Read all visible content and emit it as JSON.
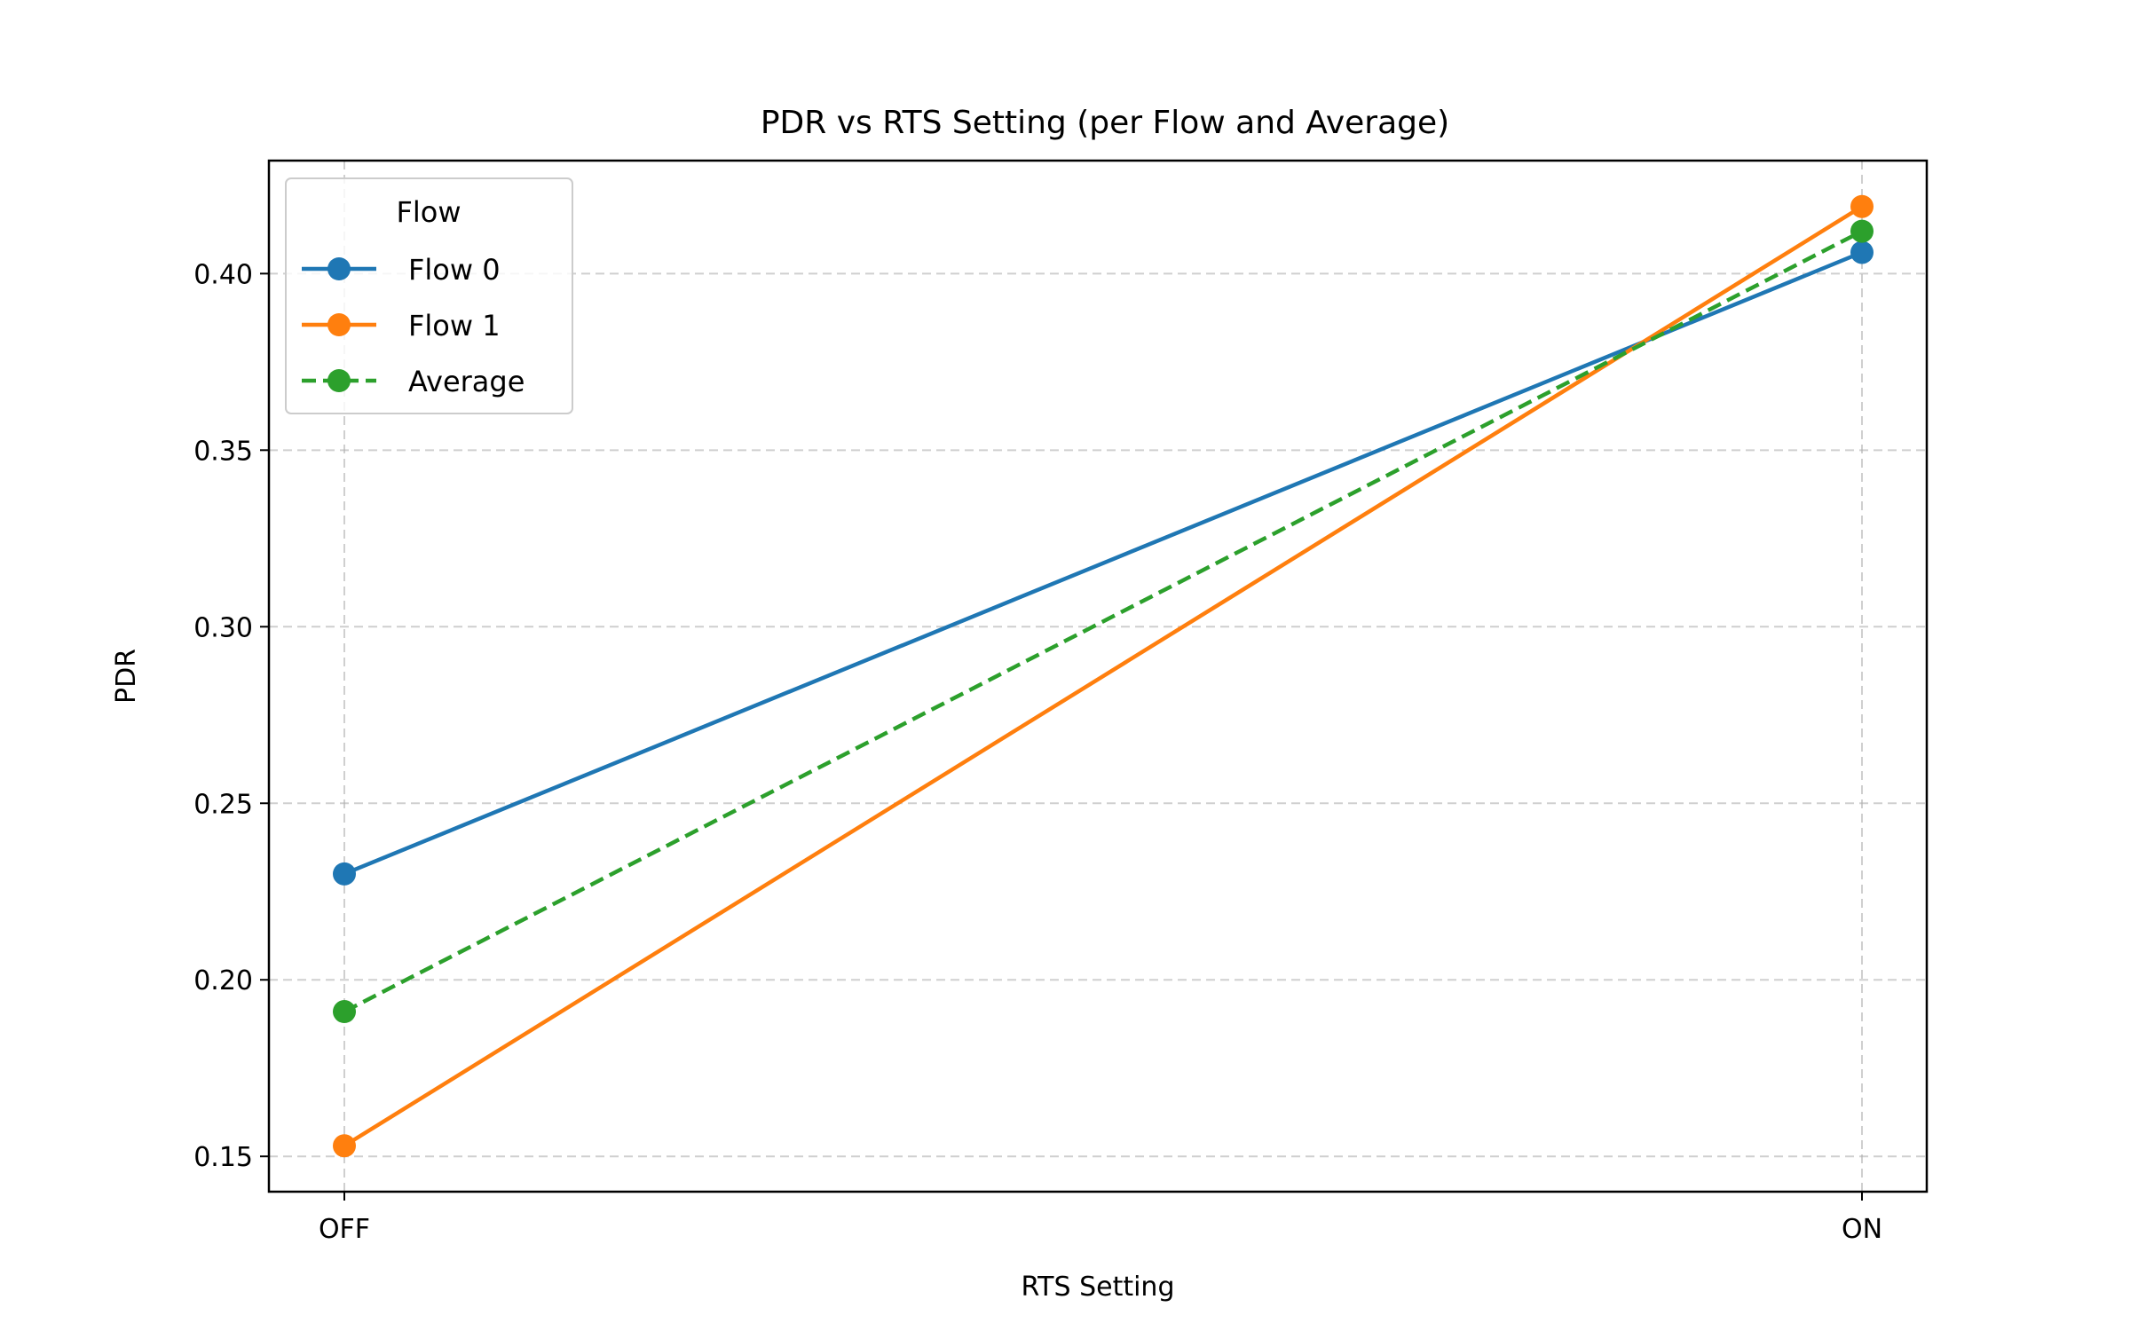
{
  "chart_data": {
    "type": "line",
    "title": "PDR vs RTS Setting (per Flow and Average)",
    "xlabel": "RTS Setting",
    "ylabel": "PDR",
    "categories": [
      "OFF",
      "ON"
    ],
    "ylim": [
      0.14,
      0.432
    ],
    "yticks": [
      0.15,
      0.2,
      0.25,
      0.3,
      0.35,
      0.4
    ],
    "ytick_labels": [
      "0.15",
      "0.20",
      "0.25",
      "0.30",
      "0.35",
      "0.40"
    ],
    "grid": true,
    "legend": {
      "title": "Flow",
      "placement": "top-left"
    },
    "series": [
      {
        "name": "Flow 0",
        "values": [
          0.23,
          0.406
        ],
        "color": "#1f77b4",
        "style": "solid"
      },
      {
        "name": "Flow 1",
        "values": [
          0.153,
          0.419
        ],
        "color": "#ff7f0e",
        "style": "solid"
      },
      {
        "name": "Average",
        "values": [
          0.191,
          0.412
        ],
        "color": "#2ca02c",
        "style": "dashed"
      }
    ]
  }
}
